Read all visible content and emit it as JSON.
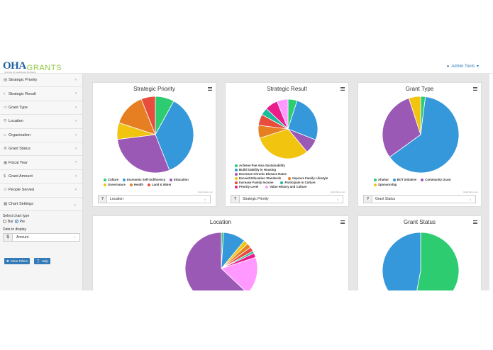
{
  "header": {
    "logo_oha": "OHA",
    "logo_grants": "GRANTS",
    "logo_tagline": "OFFICE OF HAWAIIAN AFFAIRS",
    "admin_label": "Admin Tools",
    "admin_icon": "user-icon"
  },
  "sidebar": {
    "items": [
      {
        "label": "Strategic Priority",
        "icon": "bank-icon"
      },
      {
        "label": "Strategic Result",
        "icon": "line-chart-icon"
      },
      {
        "label": "Grant Type",
        "icon": "id-card-icon"
      },
      {
        "label": "Location",
        "icon": "map-pin-icon"
      },
      {
        "label": "Organization",
        "icon": "home-icon"
      },
      {
        "label": "Grant Status",
        "icon": "gear-icon"
      },
      {
        "label": "Fiscal Year",
        "icon": "calendar-icon"
      },
      {
        "label": "Grant Amount",
        "icon": "dollar-icon"
      },
      {
        "label": "People Served",
        "icon": "users-icon"
      },
      {
        "label": "Chart Settings",
        "icon": "chart-icon"
      }
    ],
    "chart_settings": {
      "chart_type_label": "Select chart type",
      "options": [
        "Bar",
        "Pie"
      ],
      "selected": "Pie",
      "data_label": "Data to display",
      "data_addon": "$",
      "data_value": "Amount"
    },
    "buttons": {
      "clear": "Clear Filters",
      "help": "Help"
    }
  },
  "colors": {
    "green": "#2ecc71",
    "blue": "#3498db",
    "purple": "#9b59b6",
    "yellow": "#f1c40f",
    "orange": "#e67e22",
    "red": "#e74c3c",
    "teal": "#1abc9c",
    "pink": "#ff99ff",
    "magenta": "#e91e8c",
    "accent": "#337ab7"
  },
  "credit": "Highcharts.com",
  "chart_data": [
    {
      "type": "pie",
      "title": "Strategic Priority",
      "filter_value": "Location",
      "series": [
        {
          "name": "Culture",
          "value": 8,
          "color": "#2ecc71"
        },
        {
          "name": "Economic Self-Sufficiency",
          "value": 36,
          "color": "#3498db"
        },
        {
          "name": "Education",
          "value": 29,
          "color": "#9b59b6"
        },
        {
          "name": "Governance",
          "value": 7,
          "color": "#f1c40f"
        },
        {
          "name": "Health",
          "value": 14,
          "color": "#e67e22"
        },
        {
          "name": "Land & Water",
          "value": 6,
          "color": "#e74c3c"
        }
      ]
    },
    {
      "type": "pie",
      "title": "Strategic Result",
      "filter_value": "Strategic Priority",
      "series": [
        {
          "name": "Achieve Pae Aina Sustainability",
          "value": 5,
          "color": "#2ecc71"
        },
        {
          "name": "Build Stability in Housing",
          "value": 26,
          "color": "#3498db"
        },
        {
          "name": "Decrease Chronic Disease Rates",
          "value": 8,
          "color": "#9b59b6"
        },
        {
          "name": "Exceed Education Standards",
          "value": 31,
          "color": "#f1c40f"
        },
        {
          "name": "Improve Family Lifestyle",
          "value": 7,
          "color": "#e67e22"
        },
        {
          "name": "Increase Family Income",
          "value": 6,
          "color": "#e74c3c"
        },
        {
          "name": "Participate in Culture",
          "value": 4,
          "color": "#1abc9c"
        },
        {
          "name": "Priority Level",
          "value": 7,
          "color": "#e91e8c"
        },
        {
          "name": "Value History and Culture",
          "value": 6,
          "color": "#ff99ff"
        }
      ]
    },
    {
      "type": "pie",
      "title": "Grant Type",
      "filter_value": "Grant Status",
      "series": [
        {
          "name": "Ahahui",
          "value": 2,
          "color": "#2ecc71"
        },
        {
          "name": "BOT Initiative",
          "value": 63,
          "color": "#3498db"
        },
        {
          "name": "Community Grant",
          "value": 30,
          "color": "#9b59b6"
        },
        {
          "name": "Sponsorship",
          "value": 5,
          "color": "#f1c40f"
        }
      ]
    },
    {
      "type": "pie",
      "title": "Location",
      "series": [
        {
          "name": "",
          "value": 1,
          "color": "#2ecc71"
        },
        {
          "name": "",
          "value": 10,
          "color": "#3498db"
        },
        {
          "name": "",
          "value": 2,
          "color": "#f1c40f"
        },
        {
          "name": "",
          "value": 2,
          "color": "#e67e22"
        },
        {
          "name": "",
          "value": 2,
          "color": "#e74c3c"
        },
        {
          "name": "",
          "value": 1,
          "color": "#1abc9c"
        },
        {
          "name": "",
          "value": 2,
          "color": "#e91e8c"
        },
        {
          "name": "",
          "value": 17,
          "color": "#ff99ff"
        },
        {
          "name": "",
          "value": 63,
          "color": "#9b59b6"
        }
      ]
    },
    {
      "type": "pie",
      "title": "Grant Status",
      "series": [
        {
          "name": "",
          "value": 53,
          "color": "#2ecc71"
        },
        {
          "name": "",
          "value": 47,
          "color": "#3498db"
        }
      ]
    }
  ]
}
